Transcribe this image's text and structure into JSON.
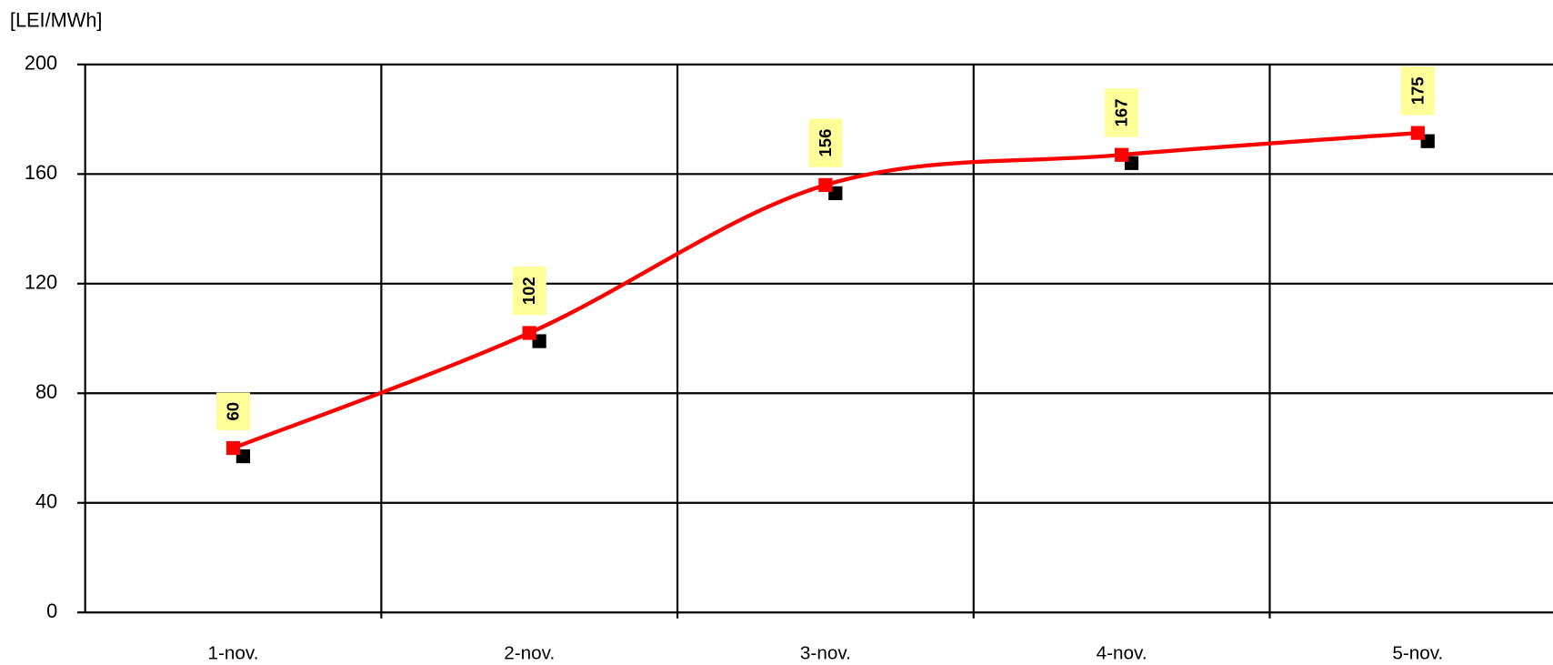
{
  "chart_data": {
    "type": "line",
    "y_label": "[LEI/MWh]",
    "categories": [
      "1-nov.",
      "2-nov.",
      "3-nov.",
      "4-nov.",
      "5-nov."
    ],
    "series": [
      {
        "color": "#ff0000",
        "values": [
          60,
          102,
          156,
          167,
          175
        ]
      },
      {
        "color": "#000000",
        "values": [
          57,
          99,
          153,
          164,
          172
        ]
      }
    ],
    "ylim": [
      0,
      200
    ],
    "yticks": [
      0,
      40,
      80,
      120,
      160,
      200
    ],
    "grid": true,
    "label_color": "#ffff99"
  }
}
